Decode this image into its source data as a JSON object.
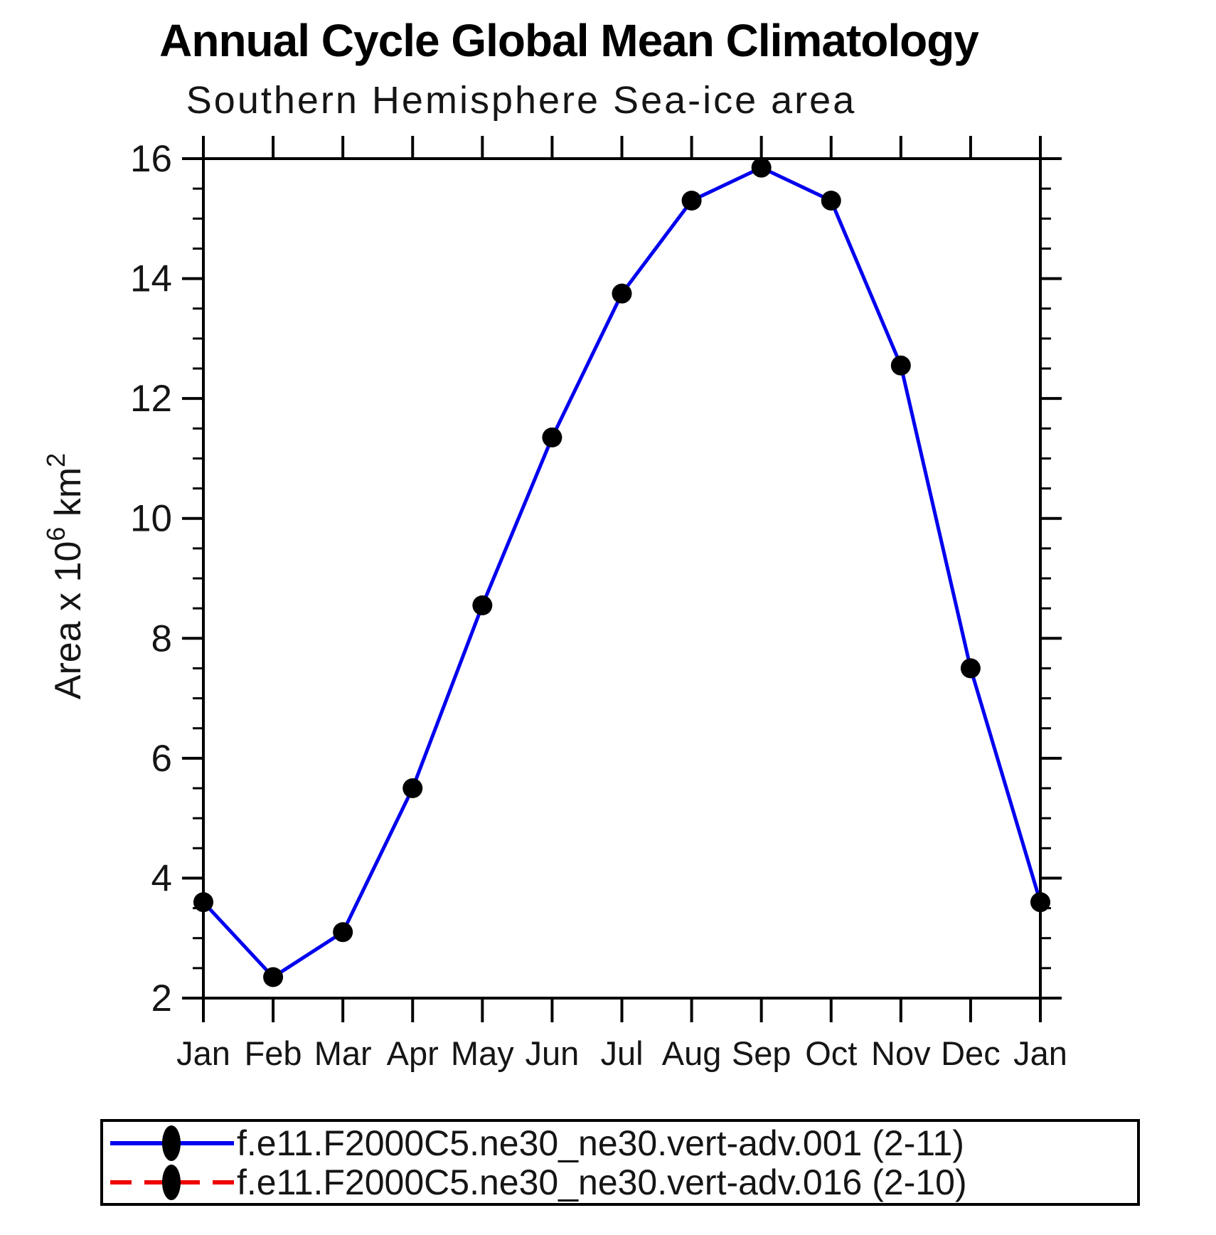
{
  "title": "Annual Cycle Global Mean Climatology",
  "subtitle": "Southern Hemisphere Sea-ice area",
  "chart_data": {
    "type": "line",
    "title": "Southern Hemisphere Sea-ice area",
    "xlabel": "",
    "ylabel": "Area x 10^6 km^2",
    "ylabel_parts": [
      {
        "text": "Area x 10"
      },
      {
        "text": "6",
        "sup": true
      },
      {
        "text": " km"
      },
      {
        "text": "2",
        "sup": true
      }
    ],
    "x_categories": [
      "Jan",
      "Feb",
      "Mar",
      "Apr",
      "May",
      "Jun",
      "Jul",
      "Aug",
      "Sep",
      "Oct",
      "Nov",
      "Dec",
      "Jan"
    ],
    "ylim": [
      2,
      16
    ],
    "yticks": [
      2,
      4,
      6,
      8,
      10,
      12,
      14,
      16
    ],
    "yminor_step": 0.5,
    "grid": false,
    "legend_position": "bottom",
    "axis_color": "#000000",
    "marker_color": "#000000",
    "series": [
      {
        "name": "f.e11.F2000C5.ne30_ne30.vert-adv.001 (2-11)",
        "color": "#0000ee",
        "style": "solid",
        "marker": "filled-circle",
        "visible": true,
        "values": [
          3.6,
          2.35,
          3.1,
          5.5,
          8.55,
          11.35,
          13.75,
          15.3,
          15.85,
          15.3,
          12.55,
          7.5,
          3.6
        ]
      },
      {
        "name": "f.e11.F2000C5.ne30_ne30.vert-adv.016 (2-10)",
        "color": "#ee0000",
        "style": "dashed",
        "marker": "filled-circle",
        "visible": false
      }
    ]
  }
}
